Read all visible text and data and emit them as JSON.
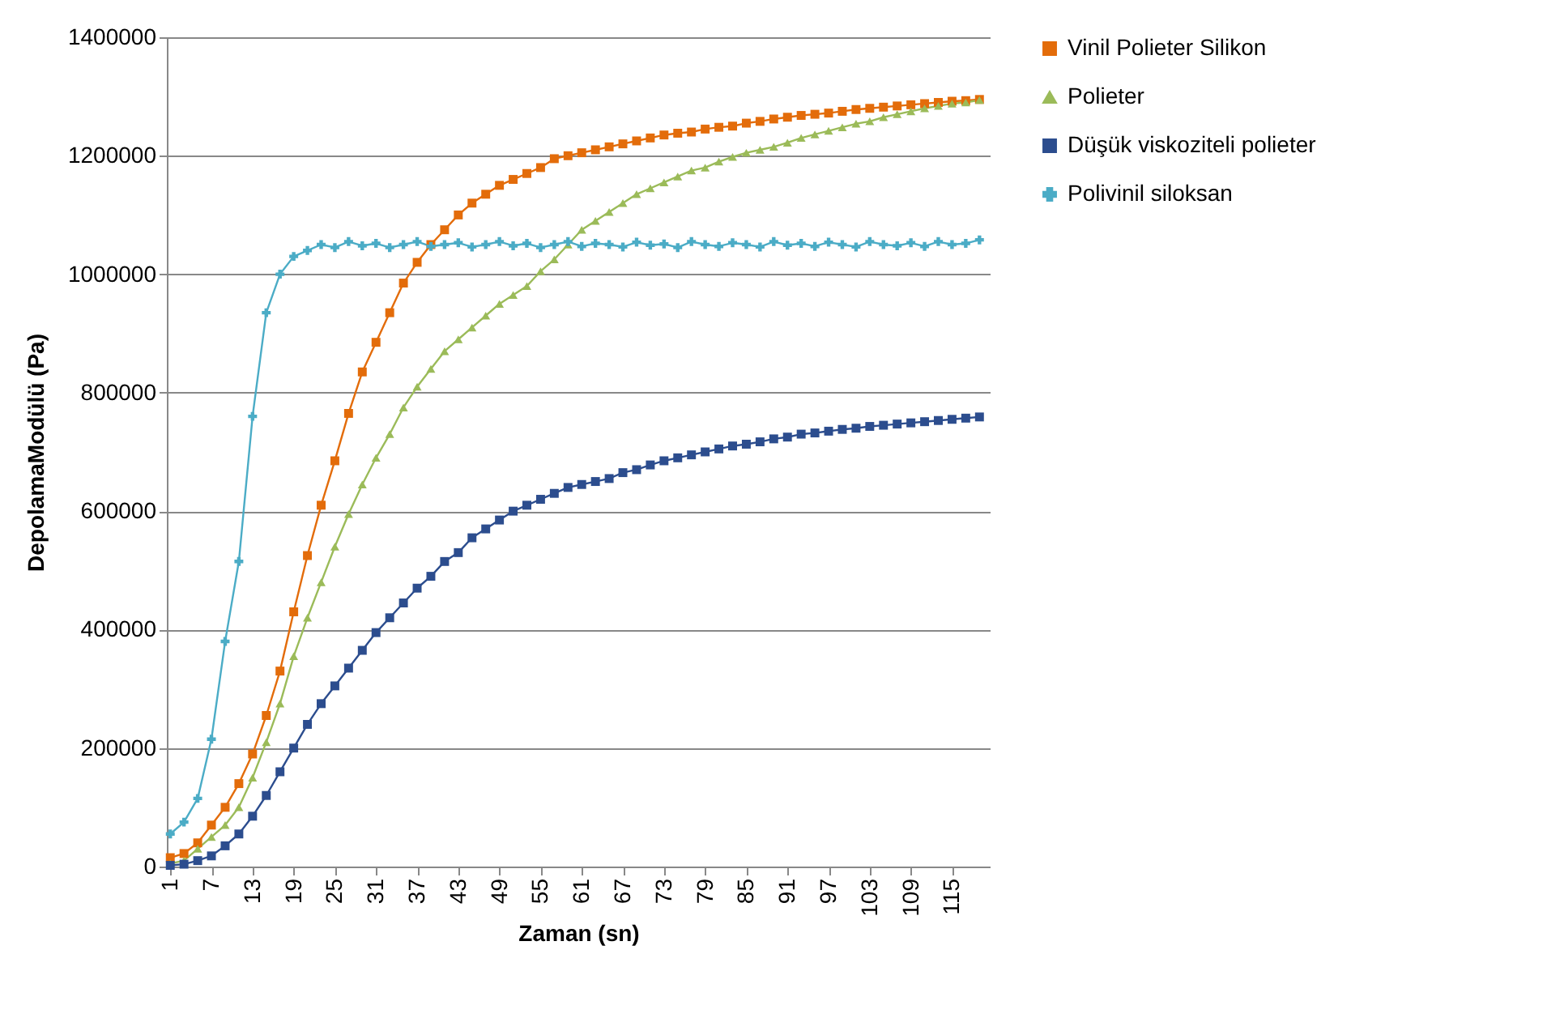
{
  "chart_data": {
    "type": "line",
    "xlabel": "Zaman (sn)",
    "ylabel": "DepolamaModülü (Pa)",
    "x": [
      1,
      3,
      5,
      7,
      9,
      11,
      13,
      15,
      17,
      19,
      21,
      23,
      25,
      27,
      29,
      31,
      33,
      35,
      37,
      39,
      41,
      43,
      45,
      47,
      49,
      51,
      53,
      55,
      57,
      59,
      61,
      63,
      65,
      67,
      69,
      71,
      73,
      75,
      77,
      79,
      81,
      83,
      85,
      87,
      89,
      91,
      93,
      95,
      97,
      99,
      101,
      103,
      105,
      107,
      109,
      111,
      113,
      115,
      117,
      119
    ],
    "xlim": [
      0.5,
      120.5
    ],
    "xticks": [
      1,
      7,
      13,
      19,
      25,
      31,
      37,
      43,
      49,
      55,
      61,
      67,
      73,
      79,
      85,
      91,
      97,
      103,
      109,
      115
    ],
    "ylim": [
      0,
      1400000
    ],
    "yticks": [
      0,
      200000,
      400000,
      600000,
      800000,
      1000000,
      1200000,
      1400000
    ],
    "grid": "y",
    "legend": "right",
    "series": [
      {
        "name": "Vinil Polieter Silikon",
        "color": "#e36c0a",
        "marker": "square",
        "values": [
          15000,
          22000,
          40000,
          70000,
          100000,
          140000,
          190000,
          255000,
          330000,
          430000,
          525000,
          610000,
          685000,
          765000,
          835000,
          885000,
          935000,
          985000,
          1020000,
          1050000,
          1075000,
          1100000,
          1120000,
          1135000,
          1150000,
          1160000,
          1170000,
          1180000,
          1195000,
          1200000,
          1205000,
          1210000,
          1215000,
          1220000,
          1225000,
          1230000,
          1235000,
          1238000,
          1240000,
          1245000,
          1248000,
          1250000,
          1255000,
          1258000,
          1262000,
          1265000,
          1268000,
          1270000,
          1272000,
          1275000,
          1278000,
          1280000,
          1282000,
          1284000,
          1286000,
          1288000,
          1290000,
          1292000,
          1293000,
          1295000
        ]
      },
      {
        "name": "Polieter",
        "color": "#9bbb59",
        "marker": "triangle",
        "values": [
          5000,
          10000,
          30000,
          50000,
          70000,
          100000,
          150000,
          210000,
          275000,
          355000,
          420000,
          480000,
          540000,
          595000,
          645000,
          690000,
          730000,
          775000,
          810000,
          840000,
          870000,
          890000,
          910000,
          930000,
          950000,
          965000,
          980000,
          1005000,
          1025000,
          1050000,
          1075000,
          1090000,
          1105000,
          1120000,
          1135000,
          1145000,
          1155000,
          1165000,
          1175000,
          1180000,
          1190000,
          1198000,
          1205000,
          1210000,
          1215000,
          1222000,
          1230000,
          1236000,
          1242000,
          1248000,
          1254000,
          1258000,
          1265000,
          1270000,
          1275000,
          1280000,
          1284000,
          1288000,
          1290000,
          1294000
        ]
      },
      {
        "name": "Düşük viskoziteli polieter",
        "color": "#2c4d8e",
        "marker": "square",
        "values": [
          2000,
          4000,
          10000,
          18000,
          35000,
          55000,
          85000,
          120000,
          160000,
          200000,
          240000,
          275000,
          305000,
          335000,
          365000,
          395000,
          420000,
          445000,
          470000,
          490000,
          515000,
          530000,
          555000,
          570000,
          585000,
          600000,
          610000,
          620000,
          630000,
          640000,
          645000,
          650000,
          655000,
          665000,
          670000,
          678000,
          685000,
          690000,
          695000,
          700000,
          705000,
          710000,
          713000,
          717000,
          722000,
          725000,
          730000,
          732000,
          735000,
          738000,
          740000,
          743000,
          745000,
          747000,
          749000,
          751000,
          753000,
          755000,
          757000,
          759000
        ]
      },
      {
        "name": "Polivinil siloksan",
        "color": "#4bacc6",
        "marker": "cross",
        "values": [
          55000,
          75000,
          115000,
          215000,
          380000,
          515000,
          760000,
          935000,
          1000000,
          1030000,
          1040000,
          1050000,
          1045000,
          1055000,
          1048000,
          1052000,
          1045000,
          1050000,
          1055000,
          1047000,
          1050000,
          1053000,
          1046000,
          1050000,
          1055000,
          1048000,
          1052000,
          1045000,
          1050000,
          1055000,
          1047000,
          1052000,
          1050000,
          1046000,
          1054000,
          1049000,
          1051000,
          1045000,
          1055000,
          1050000,
          1047000,
          1053000,
          1050000,
          1046000,
          1055000,
          1049000,
          1052000,
          1047000,
          1054000,
          1050000,
          1046000,
          1055000,
          1050000,
          1048000,
          1053000,
          1047000,
          1055000,
          1050000,
          1052000,
          1058000
        ]
      }
    ]
  }
}
